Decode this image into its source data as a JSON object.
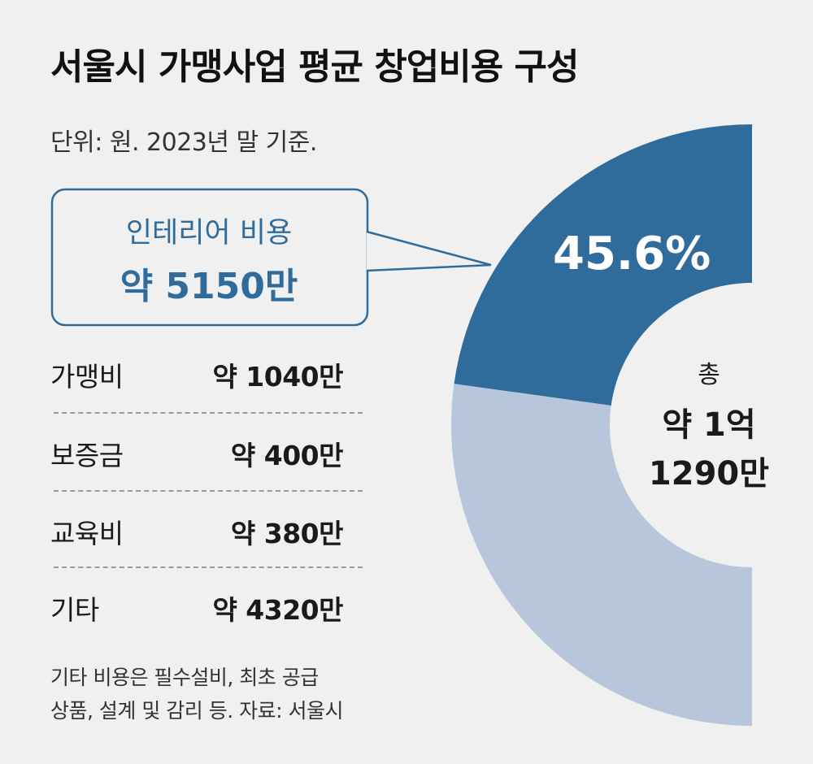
{
  "title": "서울시 가맹사업 평균 창업비용 구성",
  "subtitle": "단위: 원. 2023년 말 기준.",
  "callout": {
    "label": "인테리어 비용",
    "value": "약 5150만"
  },
  "rows": [
    {
      "category": "가맹비",
      "value": "약 1040만"
    },
    {
      "category": "보증금",
      "value": "약 400만"
    },
    {
      "category": "교육비",
      "value": "약 380만"
    },
    {
      "category": "기타",
      "value": "약 4320만"
    }
  ],
  "donut": {
    "highlight_label": "45.6%",
    "total_label": "총",
    "total_value_line1": "약 1억",
    "total_value_line2": "1290만"
  },
  "footnote": {
    "line1": "기타 비용은 필수설비, 최초 공급",
    "line2": "상품, 설계 및 감리 등.  자료: 서울시"
  },
  "colors": {
    "highlight": "#2f6c9c",
    "rest": "#b8c6dc",
    "callout_border": "#2f6c9c",
    "callout_text": "#2f6c9c",
    "background": "#f0f0f0"
  },
  "chart_data": {
    "type": "pie",
    "title": "서울시 가맹사업 평균 창업비용 구성",
    "subtitle": "단위: 원. 2023년 말 기준.",
    "categories": [
      "인테리어 비용",
      "가맹비",
      "보증금",
      "교육비",
      "기타"
    ],
    "values": [
      5150,
      1040,
      400,
      380,
      4320
    ],
    "unit": "만원",
    "highlighted_category": "인테리어 비용",
    "highlighted_percent": 45.6,
    "total": 11290,
    "total_text": "약 1억 1290만",
    "display": "half-donut (right edge), highlighted slice vs. remainder"
  }
}
